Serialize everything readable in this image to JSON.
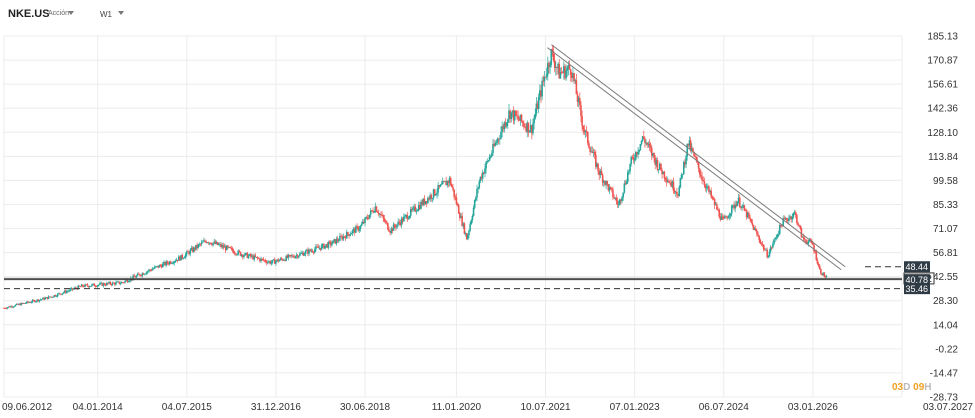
{
  "header": {
    "symbol": "NKE.US",
    "type": "Acción",
    "timeframe": "W1"
  },
  "countdown": {
    "days": "03",
    "d_unit": "D",
    "hours": "09",
    "h_unit": "H"
  },
  "colors": {
    "up": "#26a69a",
    "down": "#ef5350",
    "line": "#2b2b2b",
    "badge": "#2f3b45",
    "grid": "#ececec"
  },
  "chart_data": {
    "type": "candlestick",
    "symbol": "NKE.US",
    "timeframe": "W1",
    "y_ticks": [
      "185.13",
      "170.87",
      "156.61",
      "142.36",
      "128.10",
      "113.84",
      "99.58",
      "85.33",
      "71.07",
      "56.81",
      "42.55",
      "28.30",
      "14.04",
      "-0.22",
      "-14.47",
      "-28.73"
    ],
    "x_ticks": [
      "09.06.2012",
      "04.01.2014",
      "04.07.2015",
      "31.12.2016",
      "30.06.2018",
      "11.01.2020",
      "10.07.2021",
      "07.01.2023",
      "06.07.2024",
      "03.01.2026",
      "03.07.2027"
    ],
    "price_path": [
      [
        "2012-06-09",
        24
      ],
      [
        "2013-03-01",
        30
      ],
      [
        "2013-10-01",
        37
      ],
      [
        "2014-06-01",
        39
      ],
      [
        "2014-12-01",
        47
      ],
      [
        "2015-06-01",
        54
      ],
      [
        "2015-11-01",
        64
      ],
      [
        "2016-06-01",
        56
      ],
      [
        "2016-12-01",
        51
      ],
      [
        "2017-06-01",
        56
      ],
      [
        "2017-12-01",
        62
      ],
      [
        "2018-06-01",
        72
      ],
      [
        "2018-09-01",
        84
      ],
      [
        "2018-12-01",
        70
      ],
      [
        "2019-06-01",
        85
      ],
      [
        "2019-12-01",
        100
      ],
      [
        "2020-03-15",
        65
      ],
      [
        "2020-06-01",
        100
      ],
      [
        "2020-12-01",
        140
      ],
      [
        "2021-03-01",
        133
      ],
      [
        "2021-04-15",
        130
      ],
      [
        "2021-07-01",
        160
      ],
      [
        "2021-08-15",
        175
      ],
      [
        "2021-10-01",
        163
      ],
      [
        "2021-12-15",
        166
      ],
      [
        "2022-03-01",
        130
      ],
      [
        "2022-06-01",
        105
      ],
      [
        "2022-10-01",
        85
      ],
      [
        "2022-12-15",
        110
      ],
      [
        "2023-03-01",
        125
      ],
      [
        "2023-06-01",
        108
      ],
      [
        "2023-10-01",
        92
      ],
      [
        "2023-12-01",
        122
      ],
      [
        "2024-03-01",
        100
      ],
      [
        "2024-07-01",
        75
      ],
      [
        "2024-10-01",
        88
      ],
      [
        "2024-12-01",
        78
      ],
      [
        "2025-04-01",
        55
      ],
      [
        "2025-07-01",
        75
      ],
      [
        "2025-09-15",
        80
      ],
      [
        "2025-11-01",
        65
      ],
      [
        "2026-01-01",
        62
      ],
      [
        "2026-02-15",
        46
      ],
      [
        "2026-03-15",
        43
      ],
      [
        "2026-04-01",
        41.52
      ]
    ],
    "channel_line": {
      "start": [
        "2021-08-15",
        180
      ],
      "end": [
        "2026-07-20",
        48.44
      ]
    },
    "horizontal_levels": [
      {
        "value": 48.44,
        "label": "48.44",
        "style": "dashed"
      },
      {
        "value": 41.52,
        "label": "41.52",
        "style": "solid"
      },
      {
        "value": 40.78,
        "label": "40.78",
        "style": "solid"
      },
      {
        "value": 35.46,
        "label": "35.46",
        "style": "dashed"
      }
    ],
    "last_price": 41.52,
    "ylim": [
      -28.73,
      185.13
    ],
    "xlim": [
      "2012-06-09",
      "2027-07-03"
    ]
  }
}
